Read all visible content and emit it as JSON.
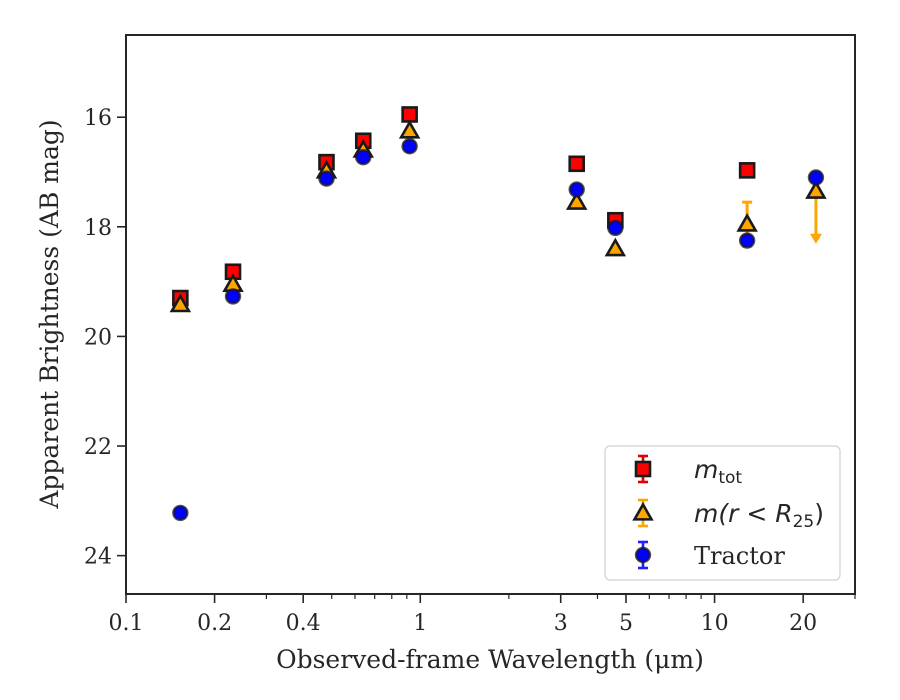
{
  "chart_data": {
    "type": "scatter",
    "xlabel": "Observed-frame Wavelength (μm)",
    "ylabel": "Apparent Brightness (AB mag)",
    "xscale": "log",
    "xlim": [
      0.1,
      30
    ],
    "ylim": [
      24.7,
      14.5
    ],
    "y_inverted": true,
    "x_ticks": [
      {
        "value": 0.1,
        "label": "0.1"
      },
      {
        "value": 0.2,
        "label": "0.2"
      },
      {
        "value": 0.4,
        "label": "0.4"
      },
      {
        "value": 1,
        "label": "1"
      },
      {
        "value": 3,
        "label": "3"
      },
      {
        "value": 5,
        "label": "5"
      },
      {
        "value": 10,
        "label": "10"
      },
      {
        "value": 20,
        "label": "20"
      }
    ],
    "y_ticks": [
      {
        "value": 16,
        "label": "16"
      },
      {
        "value": 18,
        "label": "18"
      },
      {
        "value": 20,
        "label": "20"
      },
      {
        "value": 22,
        "label": "22"
      },
      {
        "value": 24,
        "label": "24"
      }
    ],
    "grid": false,
    "legend_position": "bottom-right",
    "series": [
      {
        "key": "mtot",
        "legend_main": "m",
        "legend_sub": "tot",
        "marker": "square",
        "fill": "#ff0000",
        "edge": "#1a1a1a",
        "errcolor": "#e00000",
        "points": [
          {
            "x": 0.153,
            "y": 19.3
          },
          {
            "x": 0.231,
            "y": 18.82
          },
          {
            "x": 0.48,
            "y": 16.82
          },
          {
            "x": 0.64,
            "y": 16.43
          },
          {
            "x": 0.92,
            "y": 15.95
          },
          {
            "x": 3.4,
            "y": 16.85
          },
          {
            "x": 4.6,
            "y": 17.88
          },
          {
            "x": 12.9,
            "y": 16.97
          }
        ]
      },
      {
        "key": "mr25",
        "legend_main": "m(r < R",
        "legend_sub": "25",
        "legend_end": ")",
        "marker": "triangle",
        "fill": "#ffa500",
        "edge": "#1a1a1a",
        "errcolor": "#ffa500",
        "points": [
          {
            "x": 0.153,
            "y": 19.42
          },
          {
            "x": 0.231,
            "y": 19.05
          },
          {
            "x": 0.48,
            "y": 16.98
          },
          {
            "x": 0.64,
            "y": 16.6
          },
          {
            "x": 0.92,
            "y": 16.25
          },
          {
            "x": 3.4,
            "y": 17.55
          },
          {
            "x": 4.6,
            "y": 18.4
          },
          {
            "x": 12.9,
            "y": 17.95,
            "yerr": 0.4
          },
          {
            "x": 22.1,
            "y": 17.35,
            "upper_limit": true
          }
        ]
      },
      {
        "key": "tractor",
        "legend_main": "Tractor",
        "marker": "circle",
        "fill": "#0000ff",
        "edge": "#1a1a1a",
        "errcolor": "#2020ff",
        "points": [
          {
            "x": 0.153,
            "y": 23.22
          },
          {
            "x": 0.231,
            "y": 19.27
          },
          {
            "x": 0.48,
            "y": 17.12
          },
          {
            "x": 0.64,
            "y": 16.73
          },
          {
            "x": 0.92,
            "y": 16.53
          },
          {
            "x": 3.4,
            "y": 17.32
          },
          {
            "x": 4.6,
            "y": 18.02
          },
          {
            "x": 12.9,
            "y": 18.25
          },
          {
            "x": 22.1,
            "y": 17.1
          }
        ]
      }
    ]
  }
}
